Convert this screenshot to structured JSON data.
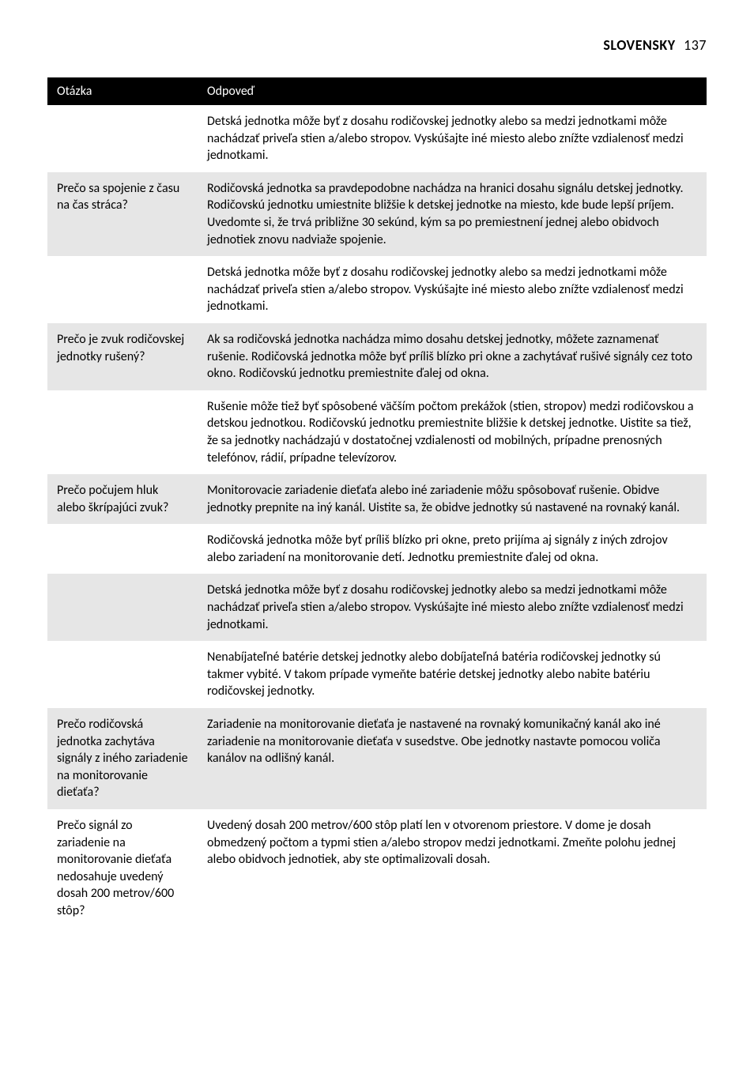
{
  "header": {
    "language": "SLOVENSKY",
    "page_number": "137"
  },
  "table": {
    "columns": {
      "question": "Otázka",
      "answer": "Odpoveď"
    },
    "rows": [
      {
        "shaded": false,
        "question": "",
        "answer": "Detská jednotka môže byť z dosahu rodičovskej jednotky alebo sa medzi jednotkami môže nachádzať priveľa stien a/alebo stropov. Vyskúšajte iné miesto alebo znížte vzdialenosť medzi jednotkami."
      },
      {
        "shaded": true,
        "question": "Prečo sa spojenie z času na čas stráca?",
        "answer": "Rodičovská jednotka sa pravdepodobne nachádza na hranici dosahu signálu detskej jednotky. Rodičovskú jednotku umiestnite bližšie k detskej jednotke na miesto, kde bude lepší príjem. Uvedomte si, že trvá približne 30 sekúnd, kým sa po premiestnení jednej alebo obidvoch jednotiek znovu nadviaže spojenie."
      },
      {
        "shaded": false,
        "question": "",
        "answer": "Detská jednotka môže byť z dosahu rodičovskej jednotky alebo sa medzi jednotkami môže nachádzať priveľa stien a/alebo stropov. Vyskúšajte iné miesto alebo znížte vzdialenosť medzi jednotkami."
      },
      {
        "shaded": true,
        "question": "Prečo je zvuk rodičovskej jednotky rušený?",
        "answer": "Ak sa rodičovská jednotka nachádza mimo dosahu detskej jednotky, môžete zaznamenať rušenie. Rodičovská jednotka môže byť príliš blízko pri okne a zachytávať rušivé signály cez toto okno. Rodičovskú jednotku premiestnite ďalej od okna."
      },
      {
        "shaded": false,
        "question": "",
        "answer": "Rušenie môže tiež byť spôsobené väčším počtom prekážok (stien, stropov) medzi rodičovskou a detskou jednotkou. Rodičovskú jednotku premiestnite bližšie k detskej jednotke. Uistite sa tiež, že sa jednotky nachádzajú v dostatočnej vzdialenosti od mobilných, prípadne prenosných telefónov, rádií, prípadne televízorov."
      },
      {
        "shaded": true,
        "question": "Prečo počujem hluk alebo škrípajúci zvuk?",
        "answer": "Monitorovacie zariadenie dieťaťa alebo iné zariadenie môžu spôsobovať rušenie. Obidve jednotky prepnite na iný kanál. Uistite sa, že obidve jednotky sú nastavené na rovnaký kanál."
      },
      {
        "shaded": false,
        "question": "",
        "answer": "Rodičovská jednotka môže byť príliš blízko pri okne, preto prijíma aj signály z iných zdrojov alebo zariadení na monitorovanie detí. Jednotku premiestnite ďalej od okna."
      },
      {
        "shaded": true,
        "question": "",
        "answer": "Detská jednotka môže byť z dosahu rodičovskej jednotky alebo sa medzi jednotkami môže nachádzať priveľa stien a/alebo stropov. Vyskúšajte iné miesto alebo znížte vzdialenosť medzi jednotkami."
      },
      {
        "shaded": false,
        "question": "",
        "answer": "Nenabíjateľné batérie detskej jednotky alebo dobíjateľná batéria rodičovskej jednotky sú takmer vybité. V takom prípade vymeňte batérie detskej jednotky alebo nabite batériu rodičovskej jednotky."
      },
      {
        "shaded": true,
        "question": "Prečo rodičovská jednotka zachytáva signály z iného zariadenie na monitorovanie dieťaťa?",
        "answer": "Zariadenie na monitorovanie dieťaťa je nastavené na rovnaký komunikačný kanál ako iné zariadenie na monitorovanie dieťaťa v susedstve. Obe jednotky nastavte pomocou voliča kanálov na odlišný kanál."
      },
      {
        "shaded": false,
        "question": "Prečo signál zo zariadenie na monitorovanie dieťaťa nedosahuje uvedený dosah 200 metrov/600 stôp?",
        "answer": "Uvedený dosah 200 metrov/600 stôp platí len v otvorenom priestore. V dome je dosah obmedzený počtom a typmi stien a/alebo stropov medzi jednotkami. Zmeňte polohu jednej alebo obidvoch jednotiek, aby ste optimalizovali dosah."
      }
    ]
  }
}
